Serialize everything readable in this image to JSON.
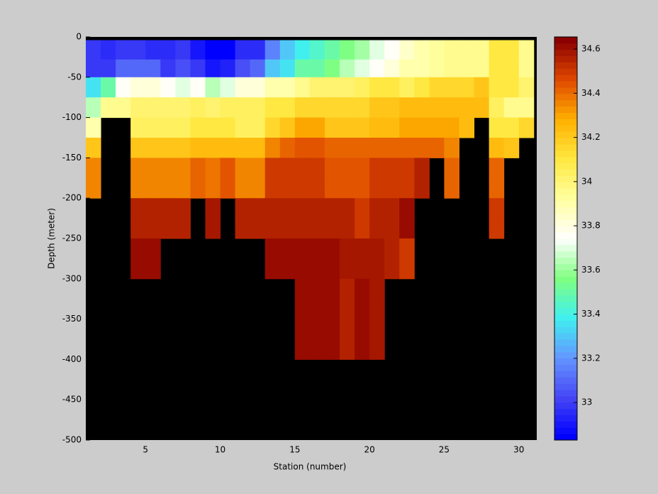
{
  "chart_data": {
    "type": "heatmap",
    "xlabel": "Station (number)",
    "ylabel": "Depth (meter)",
    "x": [
      1,
      2,
      3,
      4,
      5,
      6,
      7,
      8,
      9,
      10,
      11,
      12,
      13,
      14,
      15,
      16,
      17,
      18,
      19,
      20,
      21,
      22,
      23,
      24,
      25,
      26,
      27,
      28,
      29,
      30
    ],
    "y_edges": [
      -4,
      -28,
      -50,
      -75,
      -100,
      -125,
      -150,
      -175,
      -200,
      -225,
      -250,
      -275,
      -300,
      -325,
      -350,
      -375,
      -400
    ],
    "z": [
      [
        33.0,
        32.95,
        33.0,
        32.98,
        32.95,
        32.95,
        32.98,
        32.9,
        32.85,
        32.85,
        32.95,
        32.95,
        33.15,
        33.3,
        33.4,
        33.45,
        33.5,
        33.55,
        33.6,
        33.7,
        33.75,
        33.85,
        33.9,
        33.92,
        33.95,
        33.95,
        33.95,
        34.1,
        34.1,
        33.95
      ],
      [
        33.0,
        33.0,
        33.1,
        33.1,
        33.1,
        33.0,
        33.05,
        32.98,
        32.9,
        32.92,
        33.05,
        33.1,
        33.3,
        33.35,
        33.5,
        33.5,
        33.55,
        33.65,
        33.7,
        33.75,
        33.8,
        33.9,
        33.9,
        33.92,
        33.95,
        33.95,
        33.95,
        34.1,
        34.1,
        33.95
      ],
      [
        33.35,
        33.5,
        33.75,
        33.8,
        33.8,
        33.75,
        33.7,
        33.75,
        33.65,
        33.7,
        33.8,
        33.8,
        33.9,
        33.9,
        33.95,
        34.0,
        34.0,
        34.0,
        34.05,
        34.1,
        34.1,
        34.05,
        34.1,
        34.15,
        34.15,
        34.15,
        34.2,
        34.1,
        34.1,
        34.0
      ],
      [
        33.65,
        33.95,
        33.95,
        34.0,
        34.0,
        34.0,
        34.0,
        34.05,
        34.0,
        34.05,
        34.05,
        34.05,
        34.1,
        34.1,
        34.15,
        34.15,
        34.15,
        34.15,
        34.15,
        34.2,
        34.2,
        34.25,
        34.25,
        34.25,
        34.25,
        34.25,
        34.25,
        34.05,
        33.95,
        33.95
      ],
      [
        33.9,
        null,
        null,
        34.05,
        34.05,
        34.05,
        34.05,
        34.1,
        34.1,
        34.1,
        34.05,
        34.05,
        34.15,
        34.2,
        34.3,
        34.3,
        34.2,
        34.2,
        34.2,
        34.25,
        34.25,
        34.3,
        34.3,
        34.3,
        34.3,
        34.25,
        null,
        34.1,
        34.1,
        34.15
      ],
      [
        34.2,
        null,
        null,
        34.2,
        34.2,
        34.2,
        34.2,
        34.25,
        34.25,
        34.25,
        34.25,
        34.25,
        34.35,
        34.4,
        34.45,
        34.45,
        34.4,
        34.4,
        34.4,
        34.4,
        34.4,
        34.4,
        34.4,
        34.4,
        34.35,
        null,
        null,
        34.25,
        34.2,
        null
      ],
      [
        34.35,
        null,
        null,
        34.35,
        34.35,
        34.35,
        34.35,
        34.4,
        34.38,
        34.45,
        34.35,
        34.35,
        34.5,
        34.5,
        34.5,
        34.5,
        34.45,
        34.45,
        34.45,
        34.5,
        34.5,
        34.5,
        34.55,
        null,
        34.4,
        null,
        null,
        34.4,
        null,
        null
      ],
      [
        34.35,
        null,
        null,
        34.35,
        34.35,
        34.35,
        34.35,
        34.4,
        34.38,
        34.45,
        34.35,
        34.35,
        34.5,
        34.5,
        34.5,
        34.5,
        34.45,
        34.45,
        34.45,
        34.5,
        34.5,
        34.5,
        34.55,
        null,
        34.4,
        null,
        null,
        34.4,
        null,
        null
      ],
      [
        null,
        null,
        null,
        34.55,
        34.55,
        34.55,
        34.55,
        null,
        34.58,
        null,
        34.55,
        34.55,
        34.55,
        34.55,
        34.55,
        34.55,
        34.55,
        34.55,
        34.5,
        34.55,
        34.55,
        34.6,
        null,
        null,
        null,
        null,
        null,
        34.5,
        null,
        null
      ],
      [
        null,
        null,
        null,
        34.55,
        34.55,
        34.55,
        34.55,
        null,
        34.58,
        null,
        34.55,
        34.55,
        34.55,
        34.55,
        34.55,
        34.55,
        34.55,
        34.55,
        34.5,
        34.55,
        34.55,
        34.6,
        null,
        null,
        null,
        null,
        null,
        34.5,
        null,
        null
      ],
      [
        null,
        null,
        null,
        34.6,
        34.6,
        null,
        null,
        null,
        null,
        null,
        null,
        null,
        34.6,
        34.6,
        34.6,
        34.6,
        34.6,
        34.58,
        34.58,
        34.58,
        34.55,
        34.5,
        null,
        null,
        null,
        null,
        null,
        null,
        null,
        null
      ],
      [
        null,
        null,
        null,
        34.6,
        34.6,
        null,
        null,
        null,
        null,
        null,
        null,
        null,
        34.6,
        34.6,
        34.6,
        34.6,
        34.6,
        34.58,
        34.58,
        34.58,
        34.55,
        34.5,
        null,
        null,
        null,
        null,
        null,
        null,
        null,
        null
      ],
      [
        null,
        null,
        null,
        null,
        null,
        null,
        null,
        null,
        null,
        null,
        null,
        null,
        null,
        null,
        34.6,
        34.6,
        34.6,
        34.55,
        34.62,
        34.58,
        null,
        null,
        null,
        null,
        null,
        null,
        null,
        null,
        null,
        null
      ],
      [
        null,
        null,
        null,
        null,
        null,
        null,
        null,
        null,
        null,
        null,
        null,
        null,
        null,
        null,
        34.6,
        34.6,
        34.6,
        34.55,
        34.62,
        34.58,
        null,
        null,
        null,
        null,
        null,
        null,
        null,
        null,
        null,
        null
      ],
      [
        null,
        null,
        null,
        null,
        null,
        null,
        null,
        null,
        null,
        null,
        null,
        null,
        null,
        null,
        34.6,
        34.6,
        34.6,
        34.55,
        34.62,
        34.58,
        null,
        null,
        null,
        null,
        null,
        null,
        null,
        null,
        null,
        null
      ],
      [
        null,
        null,
        null,
        null,
        null,
        null,
        null,
        null,
        null,
        null,
        null,
        null,
        null,
        null,
        34.6,
        34.6,
        34.6,
        34.55,
        34.62,
        34.58,
        null,
        null,
        null,
        null,
        null,
        null,
        null,
        null,
        null,
        null
      ]
    ],
    "xlim": [
      1,
      31.2
    ],
    "xticks": [
      5,
      10,
      15,
      20,
      25,
      30
    ],
    "ylim": [
      -500,
      0
    ],
    "yticks": [
      -500,
      -450,
      -400,
      -350,
      -300,
      -250,
      -200,
      -150,
      -100,
      -50,
      0
    ],
    "background": "#000000",
    "colorbar": {
      "clim": [
        32.83,
        34.655
      ],
      "ticks": [
        33,
        33.2,
        33.4,
        33.6,
        33.8,
        34,
        34.2,
        34.4,
        34.6
      ],
      "colormap": [
        "#0000ff",
        "#4646f5",
        "#6496ff",
        "#40f0f0",
        "#80ff80",
        "#ffffff",
        "#ffffa0",
        "#ffe840",
        "#ffb000",
        "#e04800",
        "#8b0000"
      ]
    }
  }
}
